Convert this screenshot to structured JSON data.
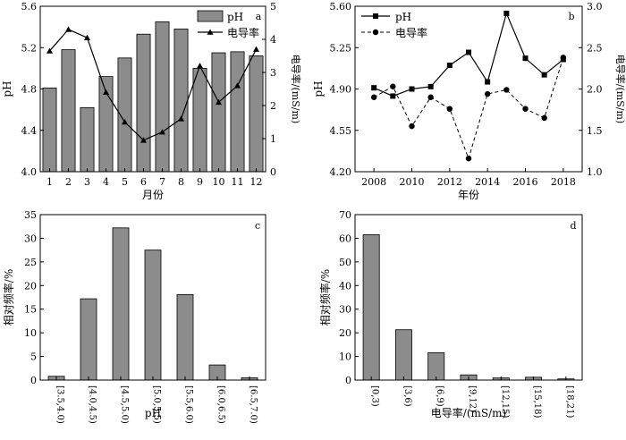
{
  "chart_data": [
    {
      "panel": "a",
      "type": "bar+line",
      "xlabel": "月份",
      "ylabel_left": "pH",
      "ylabel_right": "电导率/(mS/m)",
      "ylim_left": [
        4.0,
        5.6
      ],
      "yticks_left": [
        "4.0",
        "4.4",
        "4.8",
        "5.2",
        "5.6"
      ],
      "ylim_right": [
        0,
        5
      ],
      "yticks_right": [
        "0",
        "1",
        "2",
        "3",
        "4",
        "5"
      ],
      "categories": [
        "1",
        "2",
        "3",
        "4",
        "5",
        "6",
        "7",
        "8",
        "9",
        "10",
        "11",
        "12"
      ],
      "series": [
        {
          "name": "pH",
          "type": "bar",
          "axis": "left",
          "values": [
            4.81,
            5.18,
            4.62,
            4.92,
            5.1,
            5.33,
            5.45,
            5.38,
            5.0,
            5.15,
            5.16,
            5.12
          ]
        },
        {
          "name": "电导率",
          "type": "line",
          "axis": "right",
          "marker": "triangle",
          "values": [
            3.65,
            4.3,
            4.05,
            2.4,
            1.5,
            0.95,
            1.2,
            1.6,
            3.2,
            2.1,
            2.6,
            3.7
          ]
        }
      ],
      "legend": "top-right",
      "grid": false
    },
    {
      "panel": "b",
      "type": "line",
      "xlabel": "年份",
      "ylabel_left": "pH",
      "ylabel_right": "电导率/(mS/m)",
      "xlim": [
        2007,
        2019
      ],
      "xticks": [
        "2008",
        "2010",
        "2012",
        "2014",
        "2016",
        "2018"
      ],
      "ylim_left": [
        4.2,
        5.6
      ],
      "yticks_left": [
        "4.20",
        "4.55",
        "4.90",
        "5.25",
        "5.60"
      ],
      "ylim_right": [
        1.0,
        3.0
      ],
      "yticks_right": [
        "1.0",
        "1.5",
        "2.0",
        "2.5",
        "3.0"
      ],
      "series": [
        {
          "name": "pH",
          "axis": "left",
          "style": "solid",
          "marker": "square",
          "x": [
            2008,
            2009,
            2010,
            2011,
            2012,
            2013,
            2014,
            2015,
            2016,
            2017,
            2018
          ],
          "y": [
            4.91,
            4.84,
            4.9,
            4.92,
            5.1,
            5.21,
            4.96,
            5.54,
            5.16,
            5.02,
            5.15
          ]
        },
        {
          "name": "电导率",
          "axis": "right",
          "style": "dashed",
          "marker": "circle",
          "x": [
            2008,
            2009,
            2010,
            2011,
            2012,
            2013,
            2014,
            2015,
            2016,
            2017,
            2018
          ],
          "y": [
            1.9,
            2.03,
            1.55,
            1.9,
            1.76,
            1.16,
            1.94,
            1.99,
            1.76,
            1.65,
            2.38
          ]
        }
      ],
      "legend": "top-left",
      "grid": false
    },
    {
      "panel": "c",
      "type": "bar",
      "xlabel": "pH",
      "ylabel": "相对频率/%",
      "ylim": [
        0,
        35
      ],
      "yticks": [
        "0",
        "5",
        "10",
        "15",
        "20",
        "25",
        "30",
        "35"
      ],
      "categories": [
        "[3.5,4.0)",
        "[4.0,4.5)",
        "[4.5,5.0)",
        "[5.0,5.5)",
        "[5.5,6.0)",
        "[6.0,6.5)",
        "[6.5,7.0)"
      ],
      "values": [
        0.8,
        17.2,
        32.2,
        27.5,
        18.1,
        3.2,
        0.5
      ],
      "grid": false
    },
    {
      "panel": "d",
      "type": "bar",
      "xlabel": "电导率/(mS/m)",
      "ylabel": "相对频率/%",
      "ylim": [
        0,
        70
      ],
      "yticks": [
        "0",
        "10",
        "20",
        "30",
        "40",
        "50",
        "60",
        "70"
      ],
      "categories": [
        "[0,3)",
        "[3,6)",
        "[6,9)",
        "[9,12)",
        "[12,15)",
        "[15,18)",
        "[18,21)"
      ],
      "values": [
        61.5,
        21.3,
        11.6,
        2.2,
        0.9,
        1.2,
        0.5
      ],
      "grid": false
    }
  ],
  "colors": {
    "bar_fill": "#8c8c8c",
    "axis": "#000000",
    "background": "#ffffff"
  }
}
